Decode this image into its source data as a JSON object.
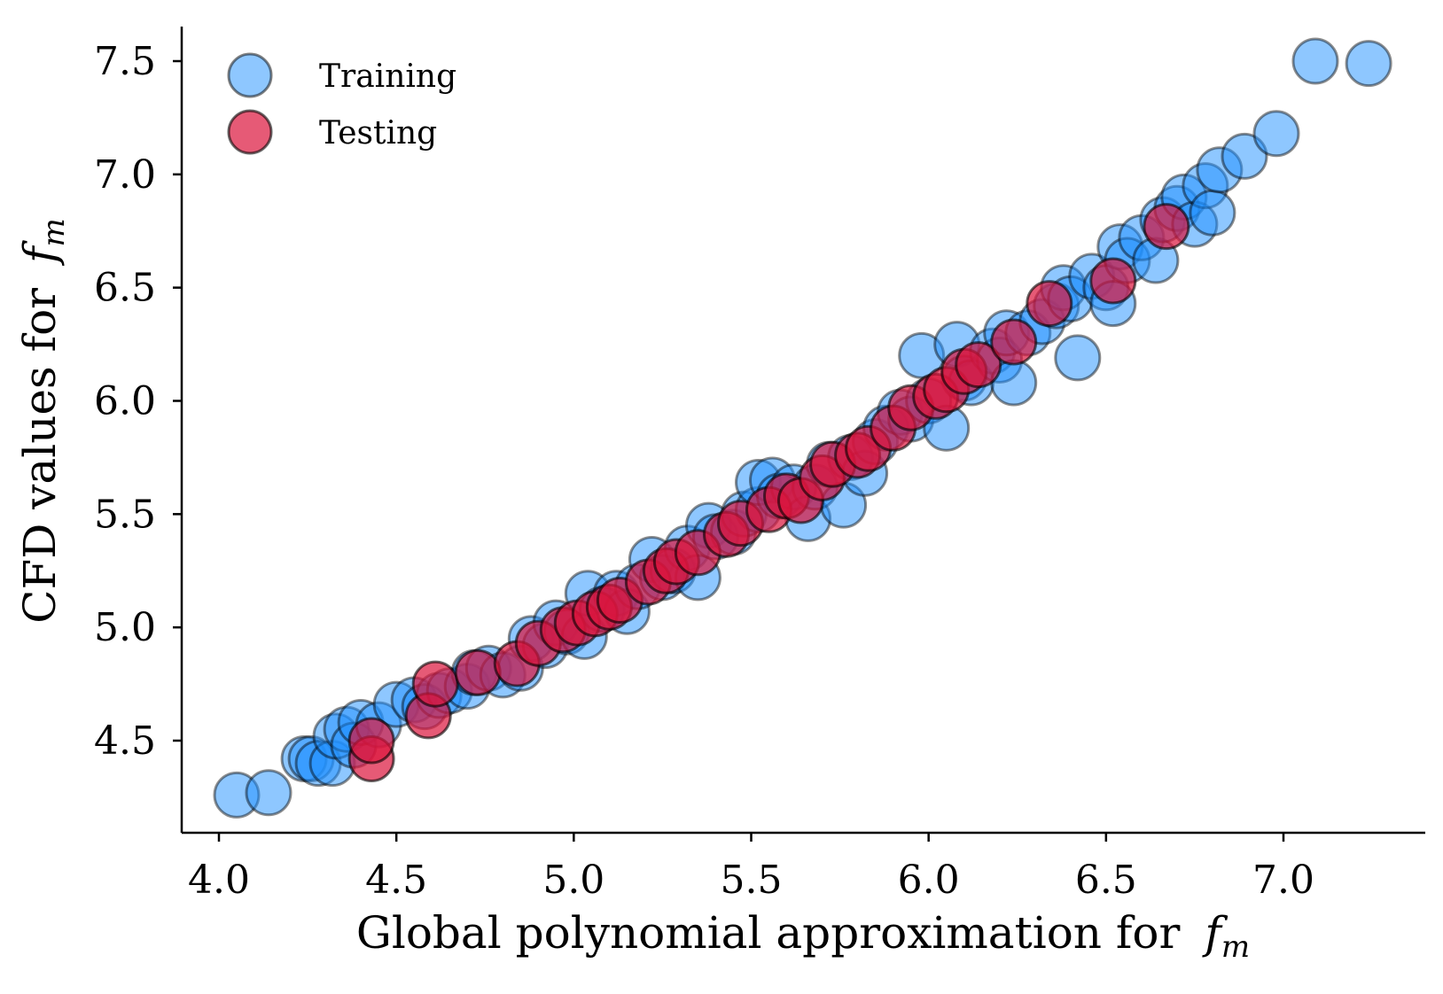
{
  "chart_data": {
    "type": "scatter",
    "title": "",
    "xlabel": "Global polynomial approximation for",
    "ylabel": "CFD values for",
    "axis_symbol": "f",
    "axis_symbol_subscript": "m",
    "xlim": [
      3.9,
      7.4
    ],
    "ylim": [
      4.1,
      7.65
    ],
    "x_ticks": [
      4.0,
      4.5,
      5.0,
      5.5,
      6.0,
      6.5,
      7.0
    ],
    "x_tick_labels": [
      "4.0",
      "4.5",
      "5.0",
      "5.5",
      "6.0",
      "6.5",
      "7.0"
    ],
    "y_ticks": [
      4.5,
      5.0,
      5.5,
      6.0,
      6.5,
      7.0,
      7.5
    ],
    "y_tick_labels": [
      "4.5",
      "5.0",
      "5.5",
      "6.0",
      "6.5",
      "7.0",
      "7.5"
    ],
    "grid": false,
    "legend_position": "top-left",
    "series": [
      {
        "name": "Training",
        "color": "#1e90ff",
        "edge_color": "#000000",
        "points": [
          [
            4.05,
            4.26
          ],
          [
            4.14,
            4.27
          ],
          [
            4.24,
            4.42
          ],
          [
            4.26,
            4.42
          ],
          [
            4.28,
            4.4
          ],
          [
            4.32,
            4.4
          ],
          [
            4.33,
            4.52
          ],
          [
            4.36,
            4.55
          ],
          [
            4.38,
            4.48
          ],
          [
            4.4,
            4.58
          ],
          [
            4.45,
            4.57
          ],
          [
            4.5,
            4.66
          ],
          [
            4.55,
            4.68
          ],
          [
            4.58,
            4.65
          ],
          [
            4.62,
            4.7
          ],
          [
            4.65,
            4.72
          ],
          [
            4.7,
            4.74
          ],
          [
            4.72,
            4.8
          ],
          [
            4.76,
            4.82
          ],
          [
            4.8,
            4.79
          ],
          [
            4.85,
            4.82
          ],
          [
            4.88,
            4.95
          ],
          [
            4.92,
            4.92
          ],
          [
            4.95,
            5.02
          ],
          [
            4.98,
            4.98
          ],
          [
            5.03,
            4.96
          ],
          [
            5.04,
            5.15
          ],
          [
            5.08,
            5.08
          ],
          [
            5.12,
            5.15
          ],
          [
            5.15,
            5.07
          ],
          [
            5.18,
            5.18
          ],
          [
            5.22,
            5.3
          ],
          [
            5.25,
            5.22
          ],
          [
            5.28,
            5.25
          ],
          [
            5.32,
            5.35
          ],
          [
            5.35,
            5.22
          ],
          [
            5.38,
            5.45
          ],
          [
            5.4,
            5.4
          ],
          [
            5.45,
            5.42
          ],
          [
            5.48,
            5.5
          ],
          [
            5.52,
            5.52
          ],
          [
            5.52,
            5.64
          ],
          [
            5.56,
            5.65
          ],
          [
            5.58,
            5.58
          ],
          [
            5.62,
            5.62
          ],
          [
            5.66,
            5.48
          ],
          [
            5.68,
            5.62
          ],
          [
            5.72,
            5.72
          ],
          [
            5.76,
            5.54
          ],
          [
            5.78,
            5.75
          ],
          [
            5.82,
            5.68
          ],
          [
            5.85,
            5.82
          ],
          [
            5.88,
            5.88
          ],
          [
            5.92,
            5.95
          ],
          [
            5.95,
            5.92
          ],
          [
            5.98,
            6.2
          ],
          [
            6.0,
            6.0
          ],
          [
            6.05,
            5.88
          ],
          [
            6.08,
            6.25
          ],
          [
            6.1,
            6.1
          ],
          [
            6.12,
            6.08
          ],
          [
            6.18,
            6.22
          ],
          [
            6.2,
            6.18
          ],
          [
            6.22,
            6.3
          ],
          [
            6.24,
            6.08
          ],
          [
            6.28,
            6.3
          ],
          [
            6.32,
            6.35
          ],
          [
            6.36,
            6.42
          ],
          [
            6.38,
            6.5
          ],
          [
            6.4,
            6.45
          ],
          [
            6.42,
            6.19
          ],
          [
            6.46,
            6.55
          ],
          [
            6.5,
            6.5
          ],
          [
            6.52,
            6.43
          ],
          [
            6.54,
            6.68
          ],
          [
            6.56,
            6.62
          ],
          [
            6.6,
            6.72
          ],
          [
            6.64,
            6.62
          ],
          [
            6.66,
            6.8
          ],
          [
            6.7,
            6.85
          ],
          [
            6.72,
            6.9
          ],
          [
            6.75,
            6.78
          ],
          [
            6.78,
            6.95
          ],
          [
            6.8,
            6.83
          ],
          [
            6.82,
            7.02
          ],
          [
            6.89,
            7.08
          ],
          [
            6.98,
            7.18
          ],
          [
            7.09,
            7.5
          ],
          [
            7.24,
            7.49
          ]
        ]
      },
      {
        "name": "Testing",
        "color": "#dc143c",
        "edge_color": "#000000",
        "points": [
          [
            4.43,
            4.42
          ],
          [
            4.43,
            4.5
          ],
          [
            4.59,
            4.61
          ],
          [
            4.61,
            4.75
          ],
          [
            4.73,
            4.8
          ],
          [
            4.84,
            4.84
          ],
          [
            4.9,
            4.93
          ],
          [
            4.97,
            4.99
          ],
          [
            5.01,
            5.02
          ],
          [
            5.06,
            5.06
          ],
          [
            5.1,
            5.09
          ],
          [
            5.13,
            5.12
          ],
          [
            5.21,
            5.2
          ],
          [
            5.26,
            5.25
          ],
          [
            5.29,
            5.29
          ],
          [
            5.35,
            5.33
          ],
          [
            5.43,
            5.41
          ],
          [
            5.47,
            5.46
          ],
          [
            5.55,
            5.52
          ],
          [
            5.6,
            5.58
          ],
          [
            5.64,
            5.56
          ],
          [
            5.7,
            5.66
          ],
          [
            5.73,
            5.72
          ],
          [
            5.8,
            5.76
          ],
          [
            5.83,
            5.79
          ],
          [
            5.9,
            5.88
          ],
          [
            5.95,
            5.97
          ],
          [
            6.02,
            6.02
          ],
          [
            6.05,
            6.05
          ],
          [
            6.1,
            6.13
          ],
          [
            6.14,
            6.16
          ],
          [
            6.24,
            6.26
          ],
          [
            6.34,
            6.43
          ],
          [
            6.52,
            6.53
          ],
          [
            6.67,
            6.77
          ]
        ]
      }
    ]
  }
}
